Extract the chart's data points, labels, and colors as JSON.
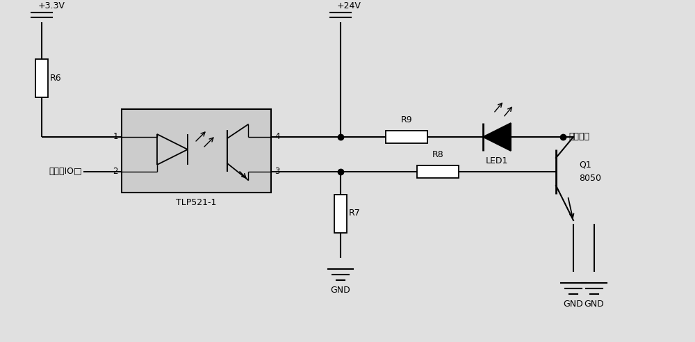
{
  "bg_color": "#e0e0e0",
  "line_color": "#000000",
  "vcc1": "+3.3V",
  "vcc2": "+24V",
  "labels": {
    "R6": "R6",
    "R7": "R7",
    "R8": "R8",
    "R9": "R9",
    "LED1": "LED1",
    "Q1": "Q1",
    "Q1_type": "8050",
    "tlp": "TLP521-1",
    "mcu": "单片朼IO□",
    "out": "输出信号",
    "gnd": "GND",
    "pin1": "1",
    "pin2": "2",
    "pin3": "3",
    "pin4": "4"
  },
  "figw": 10.0,
  "figh": 4.92
}
